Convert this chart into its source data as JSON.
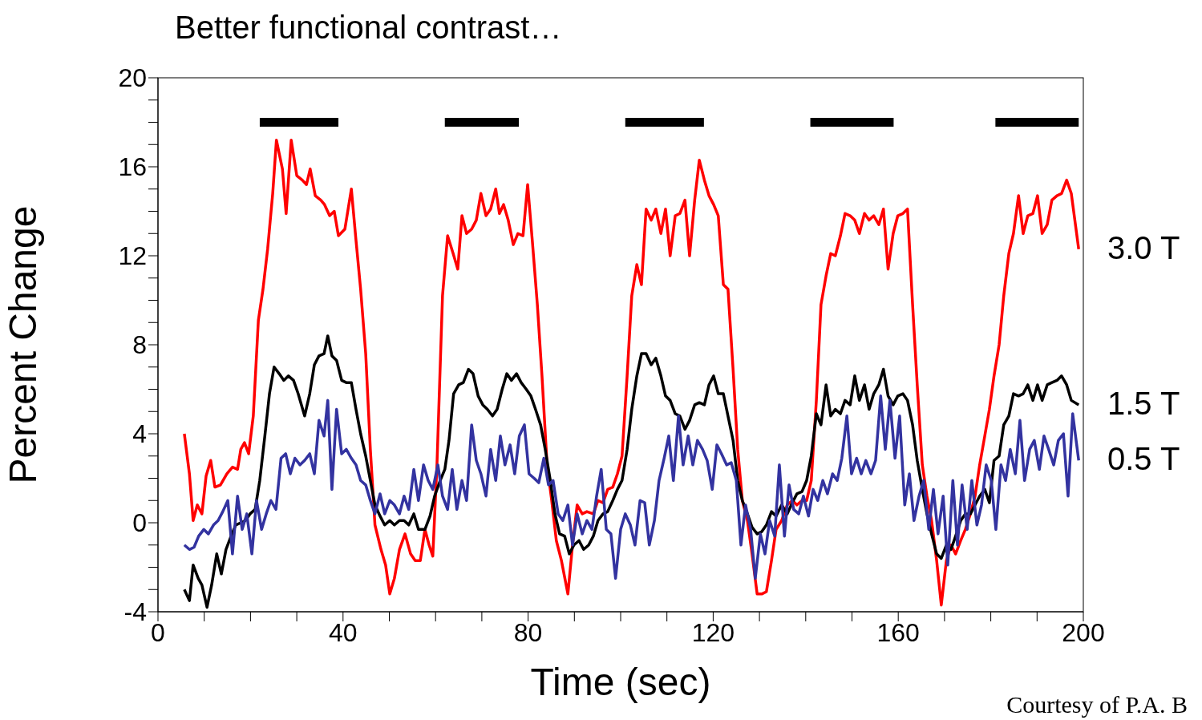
{
  "chart_data": {
    "type": "line",
    "title": "Better functional contrast…",
    "xlabel": "Time (sec)",
    "ylabel": "Percent Change",
    "annotations": [
      "Courtesy of P.A. B"
    ],
    "xlim": [
      0,
      200
    ],
    "xticks": [
      0,
      {
        "value": 10,
        "label": null
      },
      {
        "value": 20,
        "label": null
      },
      {
        "value": 30,
        "label": null
      },
      40,
      {
        "value": 50,
        "label": null
      },
      {
        "value": 60,
        "label": null
      },
      {
        "value": 70,
        "label": null
      },
      80,
      {
        "value": 90,
        "label": null
      },
      {
        "value": 100,
        "label": null
      },
      {
        "value": 110,
        "label": null
      },
      120,
      {
        "value": 130,
        "label": null
      },
      {
        "value": 140,
        "label": null
      },
      {
        "value": 150,
        "label": null
      },
      160,
      {
        "value": 170,
        "label": null
      },
      {
        "value": 180,
        "label": null
      },
      {
        "value": 190,
        "label": null
      },
      200
    ],
    "ylim": [
      -4,
      20
    ],
    "yticks": [
      -4,
      {
        "value": -3,
        "label": null
      },
      {
        "value": -2,
        "label": null
      },
      {
        "value": -1,
        "label": null
      },
      0,
      {
        "value": 1,
        "label": null
      },
      {
        "value": 2,
        "label": null
      },
      {
        "value": 3,
        "label": null
      },
      4,
      {
        "value": 5,
        "label": null
      },
      {
        "value": 6,
        "label": null
      },
      {
        "value": 7,
        "label": null
      },
      8,
      {
        "value": 9,
        "label": null
      },
      {
        "value": 10,
        "label": null
      },
      {
        "value": 11,
        "label": null
      },
      12,
      {
        "value": 13,
        "label": null
      },
      {
        "value": 14,
        "label": null
      },
      {
        "value": 15,
        "label": null
      },
      16,
      {
        "value": 17,
        "label": null
      },
      {
        "value": 18,
        "label": null
      },
      {
        "value": 19,
        "label": null
      },
      20
    ],
    "series": [
      {
        "color": "#000000",
        "x": [
          22,
          39
        ],
        "values": [
          18,
          18
        ]
      },
      {
        "color": "#000000",
        "x": [
          62,
          78
        ],
        "values": [
          18,
          18
        ]
      },
      {
        "color": "#000000",
        "x": [
          101,
          118
        ],
        "values": [
          18,
          18
        ]
      },
      {
        "color": "#000000",
        "x": [
          141,
          159
        ],
        "values": [
          18,
          18
        ]
      },
      {
        "color": "#000000",
        "x": [
          181,
          199
        ],
        "values": [
          18,
          18
        ]
      },
      {
        "name": "3.0 T",
        "color": "#ff0000",
        "x": [
          5.7,
          6.8,
          7.6,
          8.5,
          9.5,
          10.4,
          11.4,
          12.3,
          13.5,
          14.9,
          16.1,
          17.2,
          17.9,
          18.7,
          19.6,
          20.6,
          21.7,
          22.7,
          23.7,
          24.8,
          25.6,
          26.9,
          27.7,
          28.8,
          30.0,
          31.2,
          32.1,
          32.9,
          34.0,
          35.2,
          36.0,
          37.1,
          38.1,
          39.0,
          40.4,
          41.8,
          42.8,
          43.8,
          44.9,
          45.9,
          46.9,
          48.2,
          49.2,
          50.1,
          51.1,
          52.2,
          53.4,
          54.6,
          55.6,
          56.7,
          57.7,
          58.6,
          59.4,
          60.3,
          61.5,
          62.6,
          63.8,
          64.8,
          65.7,
          66.7,
          67.8,
          68.8,
          69.8,
          70.9,
          71.9,
          73.0,
          73.8,
          74.7,
          75.7,
          76.8,
          77.8,
          78.9,
          79.9,
          80.9,
          82.0,
          83.0,
          84.1,
          85.1,
          86.1,
          87.2,
          88.6,
          89.6,
          90.6,
          91.7,
          92.7,
          94.1,
          95.1,
          96.2,
          97.2,
          98.3,
          99.3,
          100.3,
          101.4,
          102.4,
          103.5,
          104.5,
          105.5,
          106.6,
          107.6,
          108.7,
          109.7,
          110.7,
          111.8,
          112.8,
          113.9,
          114.9,
          116.0,
          117.0,
          118.1,
          119.1,
          120.1,
          121.1,
          122.2,
          123.2,
          124.3,
          125.3,
          126.3,
          127.4,
          128.4,
          129.5,
          130.5,
          131.5,
          132.6,
          133.6,
          134.8,
          136.0,
          137.1,
          138.1,
          139.2,
          140.2,
          141.2,
          142.3,
          143.3,
          144.4,
          145.4,
          146.4,
          147.5,
          148.5,
          149.6,
          150.6,
          151.6,
          152.7,
          153.7,
          154.7,
          155.8,
          156.8,
          157.8,
          158.9,
          159.9,
          161.0,
          162.0,
          163.1,
          164.1,
          165.2,
          166.2,
          167.2,
          168.3,
          169.3,
          170.4,
          171.4,
          172.4,
          173.5,
          174.5,
          175.6,
          176.6,
          177.6,
          178.7,
          179.7,
          180.7,
          181.8,
          182.8,
          183.9,
          184.9,
          186.0,
          187.0,
          188.0,
          189.1,
          190.1,
          191.1,
          192.2,
          193.2,
          194.3,
          195.3,
          196.4,
          197.4,
          199.0
        ],
        "values": [
          4.0,
          2.2,
          0.1,
          0.8,
          0.4,
          2.1,
          2.8,
          1.6,
          1.7,
          2.2,
          2.5,
          2.4,
          3.3,
          3.6,
          3.1,
          4.8,
          9.1,
          10.5,
          12.3,
          14.8,
          17.2,
          15.9,
          13.9,
          17.2,
          15.6,
          15.4,
          15.2,
          15.9,
          14.7,
          14.5,
          14.3,
          13.8,
          14.0,
          12.9,
          13.2,
          15.0,
          12.7,
          10.5,
          7.6,
          3.3,
          -0.1,
          -1.2,
          -1.9,
          -3.2,
          -2.5,
          -1.2,
          -0.5,
          -1.4,
          -1.7,
          -1.7,
          -0.3,
          -1.0,
          -1.5,
          2.6,
          10.2,
          12.9,
          12.1,
          11.4,
          13.8,
          13.0,
          13.2,
          13.6,
          14.8,
          13.8,
          14.1,
          15.0,
          13.9,
          14.3,
          13.6,
          12.5,
          13.0,
          12.9,
          15.2,
          12.7,
          9.8,
          6.6,
          2.6,
          1.0,
          -0.8,
          -1.7,
          -3.2,
          -1.0,
          0.8,
          0.4,
          0.5,
          0.4,
          1.0,
          0.9,
          1.5,
          1.6,
          2.2,
          3.0,
          6.6,
          10.2,
          11.6,
          10.7,
          14.1,
          13.6,
          14.1,
          13.0,
          14.1,
          12.0,
          13.8,
          13.9,
          14.5,
          12.0,
          14.5,
          16.3,
          15.4,
          14.7,
          14.3,
          13.8,
          10.7,
          10.5,
          6.9,
          3.3,
          1.0,
          0.1,
          -1.4,
          -3.2,
          -3.2,
          -3.1,
          -1.7,
          -0.3,
          0.1,
          0.8,
          1.0,
          0.8,
          1.0,
          1.0,
          1.9,
          5.5,
          9.8,
          11.1,
          12.1,
          12.0,
          12.9,
          13.9,
          13.8,
          13.6,
          13.0,
          13.9,
          13.6,
          13.8,
          13.4,
          14.1,
          11.4,
          13.0,
          13.8,
          13.9,
          14.1,
          9.8,
          6.2,
          2.6,
          1.2,
          0.1,
          -1.7,
          -3.7,
          -1.7,
          -1.0,
          -1.4,
          -0.8,
          -0.3,
          0.4,
          1.2,
          2.6,
          3.9,
          5.1,
          6.6,
          8.0,
          10.2,
          12.1,
          13.0,
          14.7,
          13.0,
          13.8,
          13.9,
          14.7,
          13.0,
          13.4,
          14.5,
          14.7,
          14.8,
          15.4,
          14.8,
          12.3
        ]
      },
      {
        "name": "1.5 T",
        "color": "#000000",
        "x": [
          5.7,
          6.8,
          7.6,
          8.7,
          9.5,
          10.6,
          11.6,
          12.7,
          13.7,
          14.7,
          15.8,
          16.8,
          17.9,
          18.9,
          19.9,
          21.0,
          22.0,
          23.1,
          24.1,
          25.1,
          26.2,
          27.2,
          28.2,
          29.3,
          30.3,
          31.7,
          32.8,
          33.8,
          34.8,
          35.9,
          36.7,
          37.6,
          38.6,
          39.7,
          40.7,
          41.8,
          42.8,
          43.8,
          44.9,
          45.9,
          46.9,
          48.0,
          49.0,
          50.1,
          51.1,
          52.2,
          53.2,
          54.2,
          55.3,
          56.3,
          57.7,
          58.8,
          59.8,
          61.0,
          62.0,
          62.9,
          63.9,
          65.0,
          66.0,
          67.1,
          68.1,
          69.2,
          70.2,
          71.2,
          72.3,
          73.3,
          74.4,
          75.4,
          76.4,
          77.5,
          78.5,
          79.6,
          80.6,
          81.6,
          82.7,
          83.7,
          84.8,
          85.8,
          86.8,
          87.9,
          88.9,
          89.9,
          91.0,
          92.0,
          93.1,
          94.1,
          95.1,
          96.2,
          97.2,
          98.3,
          99.3,
          100.3,
          101.4,
          102.4,
          103.5,
          104.5,
          105.5,
          106.6,
          107.6,
          108.7,
          109.7,
          110.7,
          111.8,
          112.8,
          113.9,
          114.9,
          116.0,
          117.0,
          118.1,
          119.1,
          120.1,
          121.1,
          122.2,
          123.2,
          124.3,
          125.3,
          126.3,
          127.4,
          128.4,
          129.5,
          130.5,
          131.5,
          132.6,
          133.6,
          134.8,
          136.0,
          137.1,
          138.1,
          139.2,
          140.2,
          141.2,
          142.3,
          143.3,
          144.4,
          145.4,
          146.4,
          147.5,
          148.5,
          149.6,
          150.6,
          151.6,
          152.7,
          153.7,
          154.7,
          155.8,
          156.8,
          157.8,
          158.9,
          159.9,
          161.0,
          162.0,
          163.1,
          164.1,
          165.2,
          166.2,
          167.2,
          168.3,
          169.3,
          170.4,
          171.4,
          172.4,
          173.5,
          174.5,
          175.6,
          176.6,
          177.6,
          178.7,
          179.7,
          180.7,
          181.8,
          182.8,
          183.9,
          184.9,
          186.0,
          187.0,
          188.0,
          189.1,
          190.1,
          191.1,
          192.2,
          193.2,
          194.3,
          195.3,
          196.4,
          197.4,
          199.0
        ],
        "values": [
          -3.0,
          -3.5,
          -1.9,
          -2.5,
          -2.8,
          -3.8,
          -2.8,
          -1.4,
          -2.3,
          -1.2,
          -0.6,
          -0.1,
          0.0,
          0.1,
          0.4,
          0.6,
          1.9,
          3.9,
          5.8,
          7.0,
          6.7,
          6.4,
          6.6,
          6.4,
          5.8,
          4.8,
          5.8,
          7.1,
          7.5,
          7.6,
          8.4,
          7.5,
          7.3,
          6.4,
          6.3,
          6.3,
          5.1,
          4.0,
          3.0,
          1.9,
          0.8,
          0.3,
          -0.1,
          0.1,
          -0.1,
          0.1,
          0.1,
          -0.1,
          0.4,
          -0.3,
          -0.3,
          0.3,
          1.2,
          1.9,
          2.4,
          3.7,
          5.8,
          6.2,
          6.3,
          6.9,
          6.7,
          5.7,
          5.3,
          5.1,
          4.8,
          5.1,
          6.0,
          6.7,
          6.4,
          6.7,
          6.3,
          6.0,
          5.7,
          5.1,
          4.4,
          3.3,
          1.9,
          0.4,
          -0.5,
          -0.6,
          -1.4,
          -1.0,
          -0.8,
          -1.2,
          -1.0,
          -0.6,
          0.1,
          0.4,
          0.5,
          1.0,
          1.5,
          1.9,
          3.3,
          5.1,
          6.6,
          7.6,
          7.6,
          7.1,
          7.4,
          6.6,
          5.7,
          5.5,
          4.9,
          4.8,
          4.2,
          4.6,
          5.3,
          5.4,
          5.3,
          6.2,
          6.6,
          5.8,
          5.8,
          4.8,
          3.7,
          1.9,
          1.0,
          0.4,
          -0.2,
          -0.5,
          -0.4,
          -0.1,
          0.5,
          0.3,
          0.8,
          0.4,
          0.9,
          1.3,
          1.4,
          1.9,
          3.0,
          4.9,
          4.4,
          6.2,
          4.8,
          5.1,
          4.9,
          5.5,
          5.3,
          6.6,
          5.5,
          6.2,
          5.1,
          5.8,
          6.2,
          6.9,
          5.7,
          5.3,
          5.7,
          5.8,
          5.5,
          4.4,
          2.8,
          1.5,
          0.4,
          -0.5,
          -1.4,
          -1.6,
          -1.0,
          -1.2,
          -0.6,
          0.1,
          0.4,
          0.4,
          0.8,
          1.2,
          1.5,
          0.9,
          2.8,
          3.0,
          4.4,
          4.8,
          5.8,
          5.7,
          5.8,
          6.2,
          5.5,
          6.2,
          5.5,
          6.2,
          6.3,
          6.4,
          6.6,
          6.2,
          5.5,
          5.3
        ]
      },
      {
        "name": "0.5 T",
        "color": "#3333a0",
        "x": [
          5.7,
          6.8,
          7.8,
          8.8,
          9.9,
          10.9,
          12.0,
          13.0,
          14.0,
          15.1,
          16.1,
          17.2,
          18.2,
          19.2,
          20.3,
          21.3,
          22.4,
          23.4,
          24.4,
          25.5,
          26.6,
          27.6,
          28.6,
          29.6,
          30.7,
          31.7,
          32.8,
          33.8,
          34.8,
          35.9,
          36.7,
          37.6,
          38.6,
          39.7,
          40.7,
          41.8,
          42.8,
          43.8,
          44.9,
          45.9,
          46.9,
          48.0,
          49.0,
          50.1,
          51.1,
          52.2,
          53.2,
          54.2,
          55.3,
          56.3,
          57.4,
          58.4,
          59.4,
          60.5,
          61.5,
          62.6,
          63.6,
          64.6,
          65.7,
          66.7,
          67.8,
          68.8,
          69.8,
          70.9,
          71.9,
          73.0,
          74.0,
          75.0,
          76.1,
          77.1,
          78.1,
          79.2,
          80.2,
          81.3,
          82.3,
          83.4,
          84.4,
          85.4,
          86.5,
          87.5,
          88.6,
          89.6,
          90.6,
          91.7,
          92.7,
          93.8,
          94.8,
          95.8,
          96.9,
          97.9,
          98.9,
          100.0,
          101.0,
          102.1,
          103.1,
          104.2,
          105.2,
          106.2,
          107.3,
          108.3,
          109.4,
          110.4,
          111.4,
          112.5,
          113.5,
          114.6,
          115.6,
          116.6,
          117.7,
          118.7,
          119.8,
          120.8,
          121.8,
          122.9,
          123.9,
          125.0,
          126.0,
          127.0,
          128.1,
          129.1,
          130.2,
          131.2,
          132.2,
          133.3,
          134.3,
          135.4,
          136.4,
          137.4,
          138.5,
          139.5,
          140.6,
          141.6,
          142.6,
          143.7,
          144.7,
          145.8,
          146.8,
          147.8,
          148.9,
          149.9,
          151.0,
          152.0,
          153.0,
          154.1,
          155.1,
          156.2,
          157.2,
          158.2,
          159.3,
          160.3,
          161.4,
          162.4,
          163.4,
          164.5,
          165.5,
          166.6,
          167.6,
          168.6,
          169.7,
          170.7,
          171.8,
          172.8,
          173.8,
          174.9,
          175.9,
          177.0,
          178.0,
          179.0,
          180.1,
          181.1,
          182.2,
          183.2,
          184.2,
          185.3,
          186.3,
          187.3,
          188.4,
          189.4,
          190.5,
          191.5,
          192.5,
          193.6,
          194.6,
          195.7,
          196.7,
          197.7,
          199.0
        ],
        "values": [
          -1.0,
          -1.2,
          -1.1,
          -0.6,
          -0.3,
          -0.5,
          -0.1,
          0.1,
          0.5,
          1.0,
          -1.4,
          1.2,
          -0.3,
          0.4,
          -1.4,
          1.0,
          -0.3,
          0.4,
          1.0,
          0.6,
          2.9,
          3.1,
          2.2,
          2.9,
          2.6,
          2.8,
          3.1,
          2.2,
          4.6,
          3.9,
          5.5,
          1.5,
          5.1,
          3.1,
          3.3,
          2.9,
          2.6,
          1.9,
          1.7,
          1.0,
          0.4,
          1.3,
          0.4,
          1.0,
          0.8,
          0.4,
          1.2,
          0.6,
          2.4,
          1.0,
          2.6,
          1.9,
          1.5,
          2.6,
          1.2,
          0.6,
          2.4,
          0.6,
          1.9,
          1.0,
          4.4,
          2.8,
          2.2,
          1.2,
          3.3,
          1.9,
          3.9,
          2.6,
          3.5,
          2.2,
          3.9,
          4.4,
          2.2,
          2.0,
          1.8,
          2.9,
          1.7,
          1.9,
          0.4,
          0.1,
          0.8,
          -1.0,
          0.4,
          -0.5,
          0.1,
          -0.3,
          1.2,
          2.4,
          -0.3,
          -0.5,
          -2.5,
          -0.3,
          0.4,
          -0.1,
          -1.0,
          1.0,
          0.9,
          -1.0,
          0.1,
          1.9,
          2.9,
          3.9,
          1.9,
          4.8,
          2.6,
          3.9,
          2.6,
          3.7,
          3.3,
          2.8,
          1.5,
          3.5,
          3.1,
          2.6,
          2.7,
          1.9,
          -1.0,
          0.8,
          -0.3,
          -2.5,
          -0.5,
          -1.4,
          0.1,
          -0.6,
          2.6,
          -0.6,
          1.7,
          0.6,
          0.4,
          1.2,
          0.3,
          1.5,
          1.0,
          1.9,
          1.3,
          2.2,
          1.9,
          2.9,
          4.8,
          2.2,
          2.9,
          2.2,
          2.8,
          2.2,
          2.8,
          5.7,
          3.3,
          5.5,
          2.9,
          4.8,
          0.8,
          2.2,
          0.1,
          1.2,
          1.9,
          -0.3,
          1.5,
          -0.5,
          1.2,
          -1.9,
          1.9,
          -1.0,
          1.7,
          -0.3,
          1.9,
          -0.1,
          0.8,
          2.6,
          1.9,
          -0.3,
          2.6,
          1.9,
          3.3,
          2.2,
          4.6,
          1.9,
          3.3,
          3.7,
          2.4,
          3.9,
          3.3,
          2.6,
          3.7,
          4.0,
          1.2,
          4.9,
          2.8
        ]
      }
    ]
  }
}
